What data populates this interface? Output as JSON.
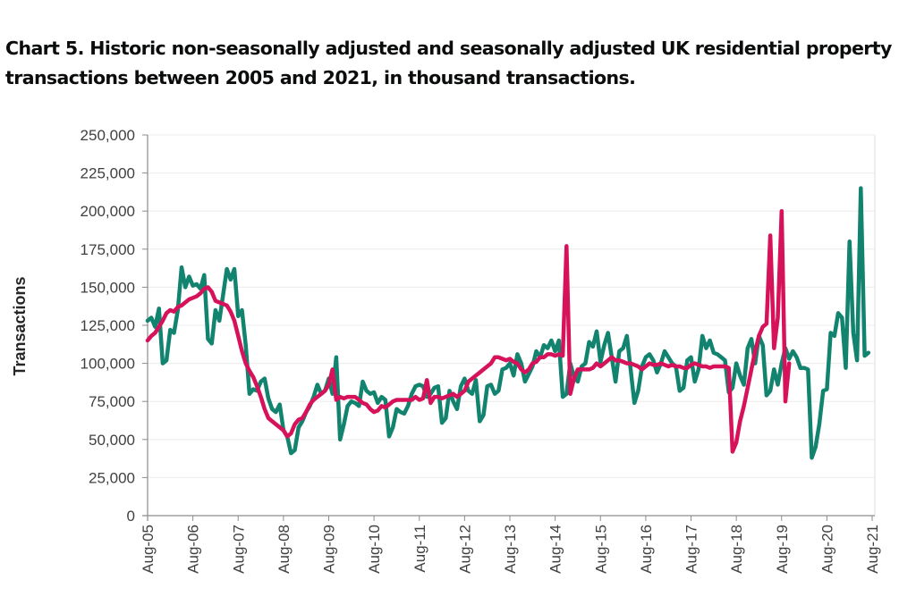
{
  "title": "Chart 5. Historic non-seasonally adjusted and seasonally adjusted UK residential property transactions between 2005 and 2021, in thousand transactions.",
  "chart_data": {
    "type": "line",
    "title": "Chart 5. Historic non-seasonally adjusted and seasonally adjusted UK residential property transactions between 2005 and 2021, in thousand transactions.",
    "xlabel": "",
    "ylabel": "Transactions",
    "ylim": [
      0,
      250000
    ],
    "yticks": [
      0,
      25000,
      50000,
      75000,
      100000,
      125000,
      150000,
      175000,
      200000,
      225000,
      250000
    ],
    "ytick_labels": [
      "0",
      "25,000",
      "50,000",
      "75,000",
      "100,000",
      "125,000",
      "150,000",
      "175,000",
      "200,000",
      "225,000",
      "250,000"
    ],
    "xtick_labels": [
      "Aug-05",
      "Aug-06",
      "Aug-07",
      "Aug-08",
      "Aug-09",
      "Aug-10",
      "Aug-11",
      "Aug-12",
      "Aug-13",
      "Aug-14",
      "Aug-15",
      "Aug-16",
      "Aug-17",
      "Aug-18",
      "Aug-19",
      "Aug-20",
      "Aug-21"
    ],
    "x_start": "Aug-05",
    "x_end": "Aug-21",
    "x_frequency": "monthly",
    "grid": true,
    "legend": "none",
    "series": [
      {
        "name": "Non-seasonally adjusted",
        "color": "#12836e",
        "values": [
          128000,
          130000,
          124000,
          136000,
          100000,
          102000,
          122000,
          120000,
          135000,
          163000,
          150000,
          157000,
          151000,
          152000,
          149000,
          158000,
          116000,
          113000,
          135000,
          128000,
          145000,
          162000,
          155000,
          162000,
          131000,
          135000,
          112000,
          80000,
          83000,
          82000,
          88000,
          90000,
          77000,
          70000,
          68000,
          73000,
          56000,
          52000,
          41000,
          43000,
          58000,
          62000,
          68000,
          72000,
          78000,
          86000,
          80000,
          82000,
          90000,
          80000,
          104000,
          50000,
          60000,
          72000,
          75000,
          74000,
          72000,
          88000,
          82000,
          80000,
          81000,
          74000,
          78000,
          76000,
          52000,
          58000,
          70000,
          68000,
          67000,
          72000,
          80000,
          85000,
          86000,
          85000,
          78000,
          80000,
          84000,
          85000,
          61000,
          64000,
          82000,
          75000,
          70000,
          85000,
          90000,
          82000,
          80000,
          89000,
          62000,
          66000,
          85000,
          86000,
          80000,
          82000,
          96000,
          97000,
          100000,
          92000,
          106000,
          100000,
          88000,
          93000,
          98000,
          108000,
          104000,
          112000,
          110000,
          115000,
          108000,
          115000,
          78000,
          80000,
          100000,
          91000,
          88000,
          98000,
          100000,
          114000,
          111000,
          121000,
          101000,
          112000,
          120000,
          104000,
          88000,
          108000,
          110000,
          118000,
          96000,
          74000,
          82000,
          98000,
          104000,
          106000,
          102000,
          94000,
          100000,
          108000,
          104000,
          100000,
          98000,
          82000,
          84000,
          102000,
          104000,
          88000,
          96000,
          118000,
          110000,
          115000,
          107000,
          106000,
          104000,
          102000,
          81000,
          84000,
          100000,
          92000,
          86000,
          110000,
          116000,
          100000,
          118000,
          112000,
          79000,
          82000,
          96000,
          86000,
          100000,
          110000,
          103000,
          108000,
          104000,
          97000,
          97000,
          96000,
          38000,
          45000,
          60000,
          82000,
          83000,
          120000,
          118000,
          133000,
          130000,
          97000,
          180000,
          120000,
          102000,
          215000,
          105000,
          107000
        ],
        "sparse_note": "monthly estimates read from chart"
      },
      {
        "name": "Seasonally adjusted",
        "color": "#d6135a",
        "values": [
          115000,
          118000,
          120000,
          124000,
          128000,
          133000,
          135000,
          134000,
          137000,
          138000,
          140000,
          142000,
          143000,
          144000,
          146000,
          149000,
          150000,
          147000,
          141000,
          140000,
          139000,
          138000,
          134000,
          128000,
          118000,
          108000,
          100000,
          95000,
          91000,
          85000,
          78000,
          70000,
          64000,
          62000,
          60000,
          58000,
          56000,
          52000,
          54000,
          60000,
          63000,
          64000,
          68000,
          73000,
          76000,
          78000,
          80000,
          82000,
          86000,
          96000,
          76000,
          78000,
          77000,
          78000,
          78000,
          78000,
          76000,
          74000,
          73000,
          70000,
          68000,
          69000,
          72000,
          71000,
          73000,
          75000,
          76000,
          76000,
          76000,
          76000,
          76000,
          78000,
          76000,
          77000,
          89000,
          74000,
          78000,
          78000,
          77000,
          78000,
          79000,
          80000,
          78000,
          80000,
          82000,
          88000,
          90000,
          92000,
          94000,
          96000,
          98000,
          100000,
          104000,
          104000,
          103000,
          102000,
          103000,
          101000,
          100000,
          96000,
          94000,
          96000,
          100000,
          101000,
          104000,
          104000,
          106000,
          106000,
          105000,
          106000,
          105000,
          177000,
          80000,
          90000,
          96000,
          96000,
          96000,
          96000,
          97000,
          100000,
          98000,
          100000,
          102000,
          104000,
          102000,
          102000,
          101000,
          100000,
          100000,
          99000,
          98000,
          96000,
          98000,
          100000,
          99000,
          99000,
          100000,
          99000,
          98000,
          99000,
          98000,
          98000,
          97000,
          97000,
          99000,
          100000,
          99000,
          98000,
          98000,
          97000,
          98000,
          98000,
          98000,
          98000,
          97000,
          42000,
          48000,
          62000,
          72000,
          84000,
          96000,
          108000,
          118000,
          124000,
          126000,
          184000,
          110000,
          130000,
          200000,
          75000,
          100000
        ],
        "sparse_note": "monthly estimates read from chart"
      }
    ]
  }
}
